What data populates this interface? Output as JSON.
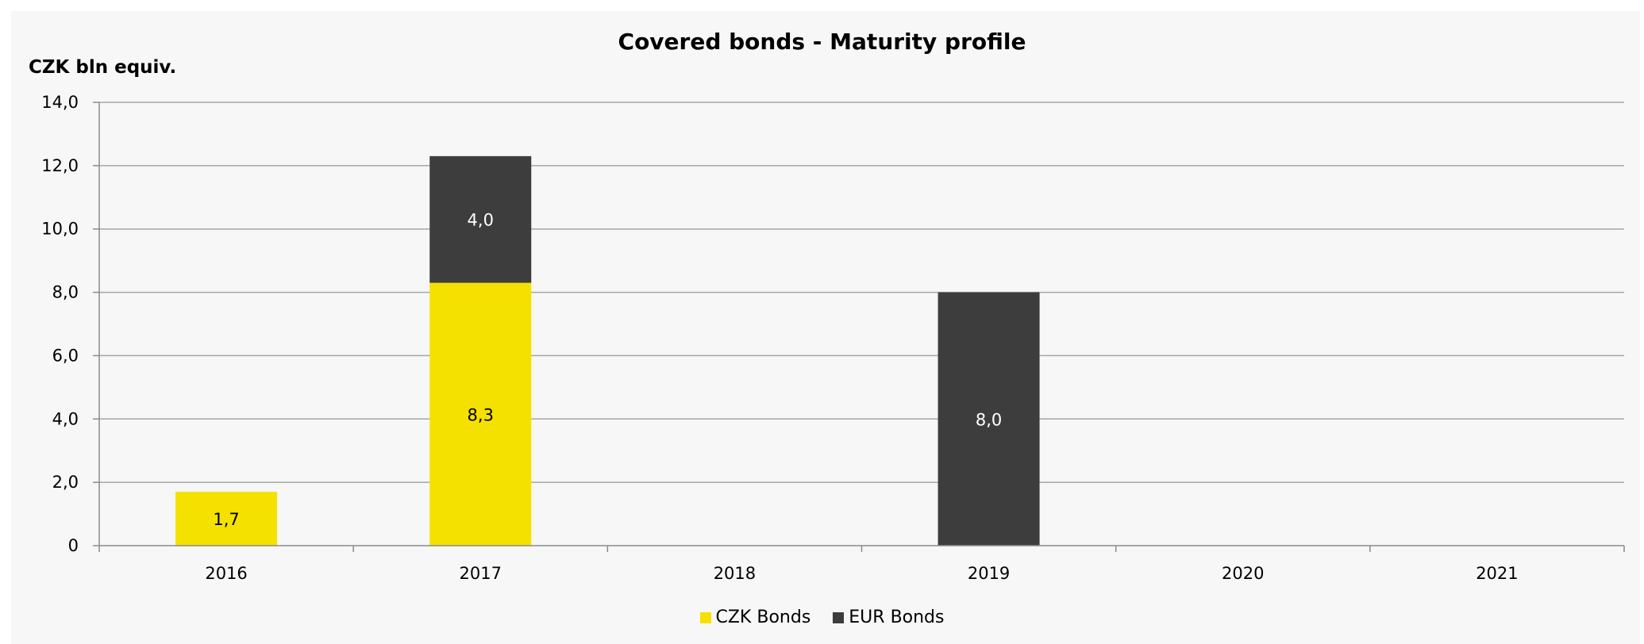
{
  "chart_data": {
    "type": "bar",
    "stacked": true,
    "title": "Covered bonds - Maturity profile",
    "ylabel": "CZK bln equiv.",
    "xlabel": "",
    "categories": [
      "2016",
      "2017",
      "2018",
      "2019",
      "2020",
      "2021"
    ],
    "ylim": [
      0,
      14
    ],
    "yticks": [
      0,
      2,
      4,
      6,
      8,
      10,
      12,
      14
    ],
    "ytick_labels": [
      "0",
      "2,0",
      "4,0",
      "6,0",
      "8,0",
      "10,0",
      "12,0",
      "14,0"
    ],
    "grid": true,
    "legend_position": "bottom",
    "series": [
      {
        "name": "CZK Bonds",
        "color": "#f5e100",
        "label_color": "#000000",
        "values": [
          1.7,
          8.3,
          0,
          0,
          0,
          0
        ],
        "data_labels": [
          "1,7",
          "8,3",
          "",
          "",
          "",
          ""
        ]
      },
      {
        "name": "EUR Bonds",
        "color": "#3d3d3d",
        "label_color": "#ffffff",
        "values": [
          0,
          4.0,
          0,
          8.0,
          0,
          0
        ],
        "data_labels": [
          "",
          "4,0",
          "",
          "8,0",
          "",
          ""
        ]
      }
    ]
  }
}
